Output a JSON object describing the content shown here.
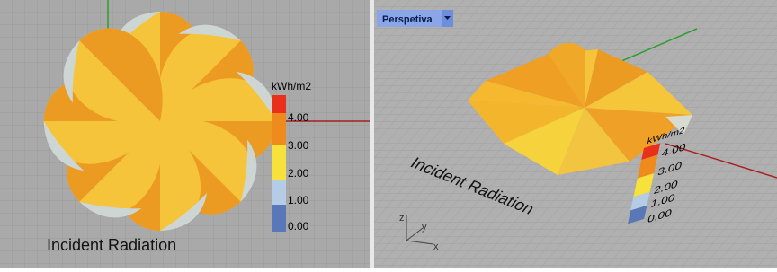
{
  "left_viewport": {
    "legend": {
      "unit": "kWh/m2",
      "labels": [
        "4.00",
        "3.00",
        "2.00",
        "1.00",
        "0.00"
      ]
    },
    "caption": "Incident Radiation"
  },
  "right_viewport": {
    "tab": "Perspetiva",
    "legend": {
      "unit": "kWh/m2",
      "labels": [
        "4.00",
        "3.00",
        "2.00",
        "1.00",
        "0.00"
      ]
    },
    "caption": "Incident Radiation",
    "axes": [
      "z",
      "y",
      "x"
    ]
  }
}
